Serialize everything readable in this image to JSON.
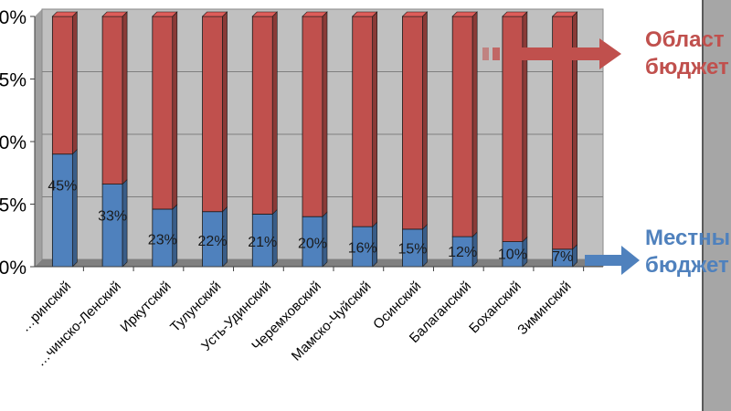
{
  "chart_data": {
    "type": "bar",
    "stacked": true,
    "percent": true,
    "categories": [
      "…ринский",
      "…чинско-Ленский",
      "Иркутский",
      "Тулунский",
      "Усть-Удинский",
      "Черемховский",
      "Мамско-Чуйский",
      "Осинский",
      "Балаганский",
      "Боханский",
      "Зиминский"
    ],
    "series": [
      {
        "name": "Местный бюджет",
        "color": "#4f81bd",
        "values": [
          45,
          33,
          23,
          22,
          21,
          20,
          16,
          15,
          12,
          10,
          7
        ]
      },
      {
        "name": "Областной бюджет",
        "color": "#c0504d",
        "values": [
          55,
          67,
          77,
          78,
          79,
          80,
          84,
          85,
          88,
          90,
          93
        ]
      }
    ],
    "data_labels": [
      "45%",
      "33%",
      "23%",
      "22%",
      "21%",
      "20%",
      "16%",
      "15%",
      "12%",
      "10%",
      "7%"
    ],
    "y_tick_labels": [
      "0%",
      "5%",
      "0%",
      "5%",
      "0%"
    ],
    "ylim": [
      0,
      100
    ],
    "grid": true
  },
  "legend": {
    "top": {
      "line1": "Област",
      "line2": "бюджет",
      "color": "#c0504d"
    },
    "bottom": {
      "line1": "Местны",
      "line2": "бюджет",
      "color": "#4f81bd"
    }
  }
}
